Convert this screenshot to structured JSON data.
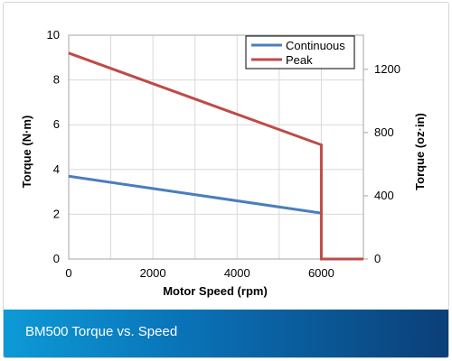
{
  "footer": {
    "caption": "BM500 Torque vs. Speed"
  },
  "chart_data": {
    "type": "line",
    "title": "",
    "xlabel": "Motor Speed (rpm)",
    "ylabel": "Torque (N·m)",
    "y2label": "Torque (oz·in)",
    "xlim": [
      0,
      7000
    ],
    "ylim": [
      0,
      10
    ],
    "y2lim": [
      0,
      1416
    ],
    "x_ticks": [
      "0",
      "2000",
      "4000",
      "6000"
    ],
    "y_ticks": [
      "0",
      "2",
      "4",
      "6",
      "8",
      "10"
    ],
    "y2_ticks": [
      "0",
      "400",
      "800",
      "1200"
    ],
    "grid": true,
    "legend": "top-right",
    "series": [
      {
        "name": "Continuous",
        "color": "#4a7ebb",
        "x": [
          0,
          6000
        ],
        "y": [
          3.7,
          2.05
        ]
      },
      {
        "name": "Peak",
        "color": "#be4b48",
        "x": [
          0,
          6000,
          6000,
          7000
        ],
        "y": [
          9.2,
          5.1,
          0,
          0
        ]
      }
    ]
  }
}
